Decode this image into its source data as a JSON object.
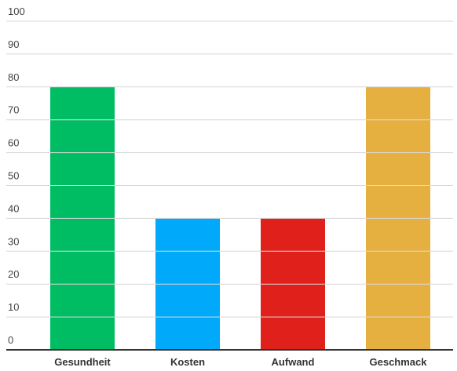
{
  "chart_data": {
    "type": "bar",
    "categories": [
      "Gesundheit",
      "Kosten",
      "Aufwand",
      "Geschmack"
    ],
    "values": [
      80,
      40,
      40,
      80
    ],
    "colors": [
      "#00bd64",
      "#00a9f9",
      "#df201b",
      "#e6b040"
    ],
    "ylim": [
      0,
      100
    ],
    "yticks": [
      0,
      10,
      20,
      30,
      40,
      50,
      60,
      70,
      80,
      90,
      100
    ],
    "grid": true
  }
}
